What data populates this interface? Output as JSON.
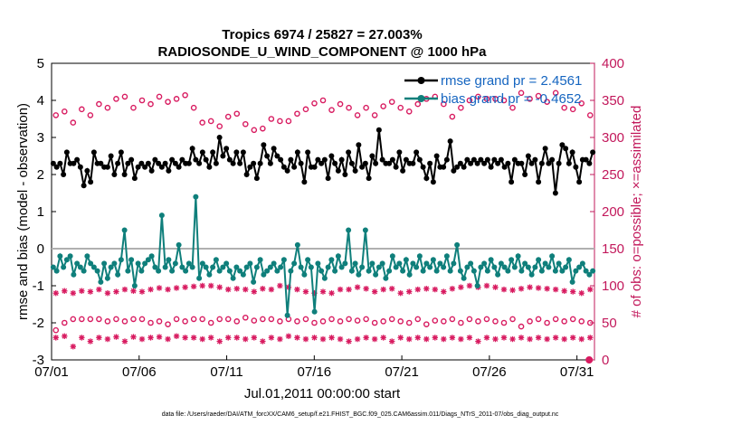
{
  "chart_data": {
    "type": "line",
    "title_line1": "Tropics 6974 / 25827 = 27.003%",
    "title_line2": "RADIOSONDE_U_WIND_COMPONENT @ 1000 hPa",
    "xlabel": "Jul.01,2011 00:00:00 start",
    "ylabel_left": "rmse and bias (model - observation)",
    "ylabel_right": "# of obs: o=possible; ×=assimilated",
    "ylim_left": [
      -3,
      5
    ],
    "ylim_right": [
      0,
      400
    ],
    "xlim": [
      0,
      31
    ],
    "yticks_left": [
      "-3",
      "-2",
      "-1",
      "0",
      "1",
      "2",
      "3",
      "4",
      "5"
    ],
    "yticks_right": [
      "0",
      "50",
      "100",
      "150",
      "200",
      "250",
      "300",
      "350",
      "400"
    ],
    "xtick_positions": [
      0,
      5,
      10,
      15,
      20,
      25,
      30
    ],
    "xtick_labels": [
      "07/01",
      "07/06",
      "07/11",
      "07/16",
      "07/21",
      "07/26",
      "07/31"
    ],
    "zero_line": 0,
    "legend": [
      {
        "name": "rmse grand pr = 2.4561",
        "color": "#000000"
      },
      {
        "name": "bias grand pr = -0.4652",
        "color": "#0f7f7b"
      }
    ],
    "colors": {
      "rmse": "#000000",
      "bias": "#0f7f7b",
      "obs": "#d81b60",
      "zero": "#b0b0b0",
      "right_axis": "#c2185b"
    },
    "series": [
      {
        "name": "rmse",
        "axis": "left",
        "values": [
          2.3,
          2.2,
          2.3,
          2.0,
          2.6,
          2.3,
          2.3,
          2.4,
          2.2,
          1.7,
          2.1,
          1.8,
          2.6,
          2.3,
          2.3,
          2.2,
          2.2,
          2.5,
          2.0,
          2.3,
          2.6,
          2.0,
          2.3,
          2.4,
          1.9,
          2.2,
          2.3,
          2.2,
          2.3,
          2.1,
          2.4,
          2.3,
          2.2,
          2.3,
          2.1,
          2.4,
          2.3,
          2.2,
          2.4,
          2.3,
          2.3,
          2.7,
          2.4,
          2.3,
          2.6,
          2.4,
          2.2,
          2.6,
          2.3,
          3.0,
          2.5,
          2.7,
          2.4,
          2.3,
          2.6,
          2.3,
          2.6,
          2.0,
          2.2,
          2.3,
          1.9,
          2.3,
          2.8,
          2.5,
          2.3,
          2.7,
          2.5,
          2.4,
          2.2,
          2.1,
          2.4,
          2.2,
          2.6,
          2.3,
          1.8,
          2.6,
          2.2,
          2.2,
          2.4,
          2.3,
          2.4,
          1.9,
          2.5,
          2.3,
          2.1,
          2.4,
          2.0,
          2.6,
          2.3,
          2.1,
          2.8,
          2.2,
          2.3,
          1.9,
          2.5,
          2.3,
          3.2,
          2.4,
          2.3,
          2.3,
          2.4,
          2.2,
          2.6,
          2.1,
          2.4,
          2.3,
          2.3,
          2.6,
          2.4,
          2.2,
          1.9,
          2.3,
          1.8,
          2.5,
          2.2,
          2.2,
          2.4,
          2.9,
          2.1,
          2.2,
          2.3,
          2.2,
          2.4,
          2.3,
          2.4,
          2.3,
          2.4,
          2.3,
          2.4,
          2.2,
          2.4,
          2.3,
          2.4,
          2.2,
          2.3,
          1.8,
          2.4,
          2.3,
          2.3,
          2.0,
          2.5,
          2.3,
          2.4,
          1.8,
          2.3,
          2.7,
          2.3,
          2.4,
          1.5,
          2.3,
          2.8,
          2.7,
          2.3,
          2.6,
          2.2,
          1.8,
          2.4,
          2.4,
          2.3,
          2.6
        ]
      },
      {
        "name": "bias",
        "axis": "left",
        "values": [
          -0.5,
          -0.6,
          -0.2,
          -0.5,
          -0.3,
          -0.2,
          -0.7,
          -0.4,
          -0.5,
          -0.6,
          -0.2,
          -0.4,
          -0.5,
          -0.6,
          -0.9,
          -0.4,
          -0.8,
          -0.5,
          -0.4,
          -0.7,
          -0.3,
          0.5,
          -0.6,
          -0.3,
          -1.0,
          -0.4,
          -0.6,
          -0.4,
          -0.3,
          -0.2,
          -0.5,
          -0.6,
          0.9,
          -0.5,
          -0.3,
          -0.6,
          -0.4,
          0.1,
          -0.5,
          -0.6,
          -0.4,
          -0.5,
          1.4,
          -0.8,
          -0.4,
          -0.5,
          -0.7,
          -0.5,
          -0.3,
          -0.6,
          -0.5,
          -0.4,
          -0.6,
          -0.8,
          -0.5,
          -0.6,
          -0.7,
          -0.5,
          -0.4,
          -0.9,
          -0.5,
          -0.3,
          -0.7,
          -0.6,
          -0.5,
          -0.4,
          -0.6,
          -0.5,
          -0.3,
          -1.8,
          -0.6,
          -0.4,
          0.1,
          -0.5,
          -0.7,
          -0.3,
          -0.5,
          -1.7,
          -0.4,
          -0.6,
          -0.8,
          -0.5,
          -0.3,
          -0.6,
          -0.2,
          -0.5,
          -0.4,
          0.5,
          -0.6,
          -0.4,
          -0.7,
          -0.5,
          0.5,
          -0.6,
          -0.4,
          -0.7,
          -0.5,
          -0.4,
          -0.8,
          -0.6,
          -0.2,
          -0.5,
          -0.4,
          -0.6,
          -0.3,
          -0.7,
          -0.4,
          -0.5,
          -0.2,
          -0.6,
          -0.4,
          -0.5,
          -0.3,
          -0.6,
          -0.4,
          -0.5,
          -0.2,
          -0.6,
          -0.4,
          0.1,
          -0.6,
          -0.8,
          -0.5,
          -0.4,
          -0.6,
          -1.0,
          -0.5,
          -0.4,
          -0.6,
          -0.3,
          -0.5,
          -0.7,
          -0.4,
          -0.5,
          -0.6,
          -0.3,
          -0.5,
          -0.2,
          -0.6,
          -0.4,
          -0.5,
          -0.7,
          -0.5,
          -0.3,
          -0.6,
          -0.4,
          -0.5,
          -0.2,
          -0.6,
          -0.4,
          -0.6,
          -0.5,
          -0.3,
          -0.9,
          -0.6,
          -0.5,
          -0.4,
          -0.6,
          -0.7,
          -0.6
        ]
      },
      {
        "name": "possible upper",
        "axis": "right",
        "values": [
          330,
          335,
          320,
          338,
          330,
          345,
          340,
          352,
          355,
          340,
          350,
          345,
          355,
          348,
          352,
          357,
          340,
          320,
          322,
          315,
          328,
          332,
          318,
          310,
          312,
          325,
          322,
          322,
          332,
          338,
          346,
          350,
          337,
          345,
          340,
          330,
          340,
          330,
          342,
          348,
          340,
          335,
          345,
          352,
          355,
          345,
          328,
          340,
          350,
          355,
          352,
          352,
          350,
          340,
          360,
          352,
          356,
          348,
          360,
          340,
          338,
          346,
          330
        ]
      },
      {
        "name": "possible lower",
        "axis": "right",
        "values": [
          40,
          50,
          55,
          55,
          55,
          55,
          52,
          55,
          52,
          55,
          55,
          50,
          52,
          48,
          55,
          52,
          55,
          55,
          50,
          55,
          55,
          52,
          57,
          53,
          55,
          55,
          52,
          55,
          52,
          55,
          50,
          52,
          55,
          52,
          55,
          53,
          55,
          50,
          52,
          55,
          52,
          50,
          55,
          48,
          53,
          52,
          55,
          50,
          55,
          52,
          55,
          52,
          50,
          55,
          45,
          52,
          55,
          50,
          55,
          52,
          55,
          52,
          50
        ]
      },
      {
        "name": "assimilated upper",
        "axis": "right",
        "values": [
          90,
          93,
          90,
          93,
          92,
          95,
          90,
          92,
          95,
          93,
          92,
          95,
          97,
          95,
          97,
          98,
          99,
          100,
          100,
          98,
          95,
          96,
          95,
          92,
          96,
          95,
          100,
          98,
          95,
          92,
          90,
          92,
          90,
          95,
          95,
          98,
          96,
          92,
          95,
          96,
          90,
          92,
          95,
          96,
          95,
          92,
          96,
          98,
          100,
          98,
          100,
          98,
          95,
          94,
          96,
          98,
          97,
          96,
          95,
          93,
          92,
          90,
          95
        ]
      },
      {
        "name": "assimilated lower",
        "axis": "right",
        "values": [
          30,
          32,
          18,
          30,
          25,
          30,
          28,
          31,
          25,
          31,
          28,
          30,
          31,
          28,
          32,
          30,
          30,
          28,
          30,
          25,
          30,
          30,
          28,
          30,
          25,
          30,
          28,
          32,
          30,
          28,
          30,
          28,
          30,
          28,
          25,
          28,
          30,
          28,
          30,
          25,
          30,
          28,
          30,
          28,
          30,
          28,
          30,
          28,
          30,
          25,
          30,
          28,
          30,
          28,
          30,
          28,
          30,
          28,
          30,
          28,
          30,
          28,
          30
        ]
      }
    ],
    "extra_points": [
      {
        "name": "last possible",
        "axis": "right",
        "x": 30.7,
        "value": 0
      }
    ]
  },
  "footnote": "data file: /Users/raeder/DAI/ATM_forcXX/CAM6_setup/f.e21.FHIST_BGC.f09_025.CAM6assim.011/Diags_NTrS_2011-07/obs_diag_output.nc"
}
